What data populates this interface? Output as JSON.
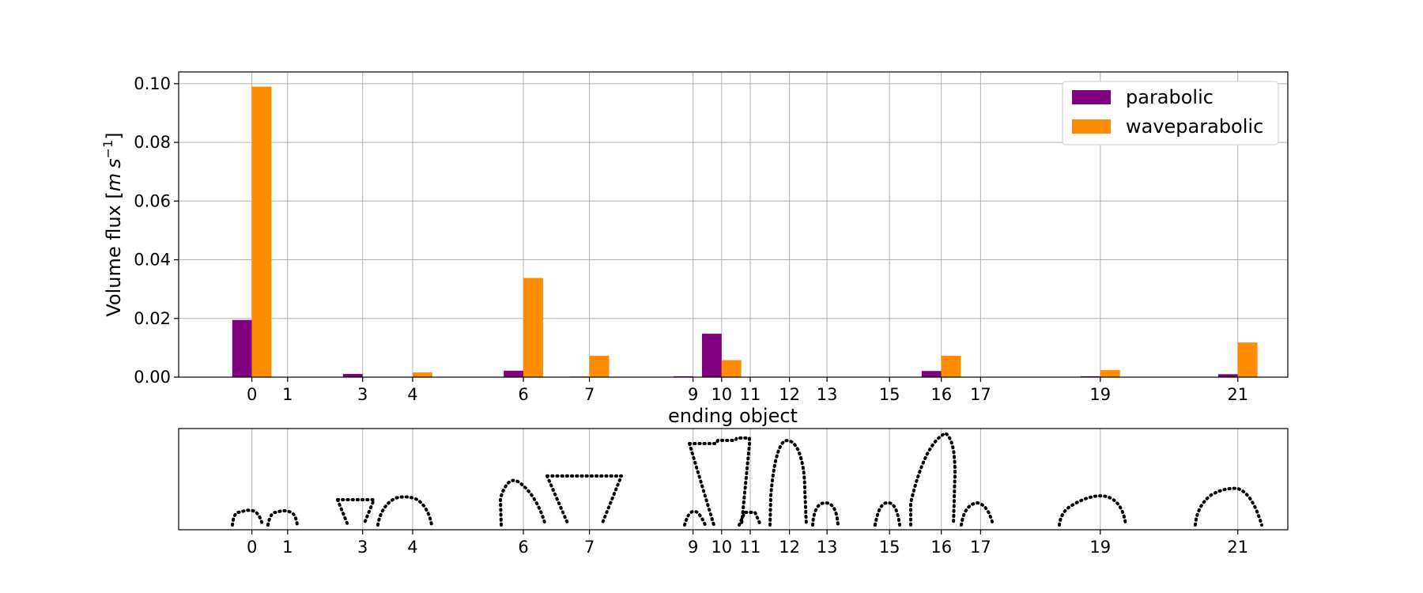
{
  "chart_data": [
    {
      "type": "bar",
      "title": "",
      "xlabel": "ending object",
      "ylabel_text": "Volume flux [",
      "ylabel_unit_m": "m",
      "ylabel_unit_s": "s",
      "ylabel_exp": "−1",
      "ylabel_close": "]",
      "ylim": [
        0,
        0.104
      ],
      "xlim": [
        -2.05,
        29.0
      ],
      "grid": true,
      "legend_position": "top-right",
      "xticks": [
        {
          "pos": 0.0,
          "label": "0"
        },
        {
          "pos": 1.0,
          "label": "1"
        },
        {
          "pos": 3.1,
          "label": "3"
        },
        {
          "pos": 4.5,
          "label": "4"
        },
        {
          "pos": 7.6,
          "label": "6"
        },
        {
          "pos": 9.45,
          "label": "7"
        },
        {
          "pos": 12.35,
          "label": "9"
        },
        {
          "pos": 13.15,
          "label": "10"
        },
        {
          "pos": 13.95,
          "label": "11"
        },
        {
          "pos": 15.05,
          "label": "12"
        },
        {
          "pos": 16.1,
          "label": "13"
        },
        {
          "pos": 17.85,
          "label": "15"
        },
        {
          "pos": 19.3,
          "label": "16"
        },
        {
          "pos": 20.4,
          "label": "17"
        },
        {
          "pos": 23.75,
          "label": "19"
        },
        {
          "pos": 27.6,
          "label": "21"
        }
      ],
      "yticks": [
        "0.00",
        "0.02",
        "0.04",
        "0.06",
        "0.08",
        "0.10"
      ],
      "ytick_values": [
        0,
        0.02,
        0.04,
        0.06,
        0.08,
        0.1
      ],
      "series": [
        {
          "name": "parabolic",
          "color": "#800080",
          "values": [
            0.0195,
            0,
            0.0011,
            0,
            0.0022,
            0.0002,
            0.0003,
            0.0148,
            0,
            0,
            0,
            0,
            0.0021,
            0,
            0.0003,
            0.001
          ]
        },
        {
          "name": "waveparabolic",
          "color": "#ff8c00",
          "values": [
            0.099,
            0,
            0,
            0.0016,
            0.0338,
            0.0073,
            0,
            0.0058,
            0,
            0,
            0,
            0,
            0.0073,
            0,
            0.0024,
            0.0118
          ]
        }
      ]
    },
    {
      "type": "shape-strip",
      "tick_labels": [
        "0",
        "1",
        "3",
        "4",
        "6",
        "7",
        "9",
        "10",
        "11",
        "12",
        "13",
        "15",
        "16",
        "17",
        "19",
        "21"
      ]
    }
  ]
}
